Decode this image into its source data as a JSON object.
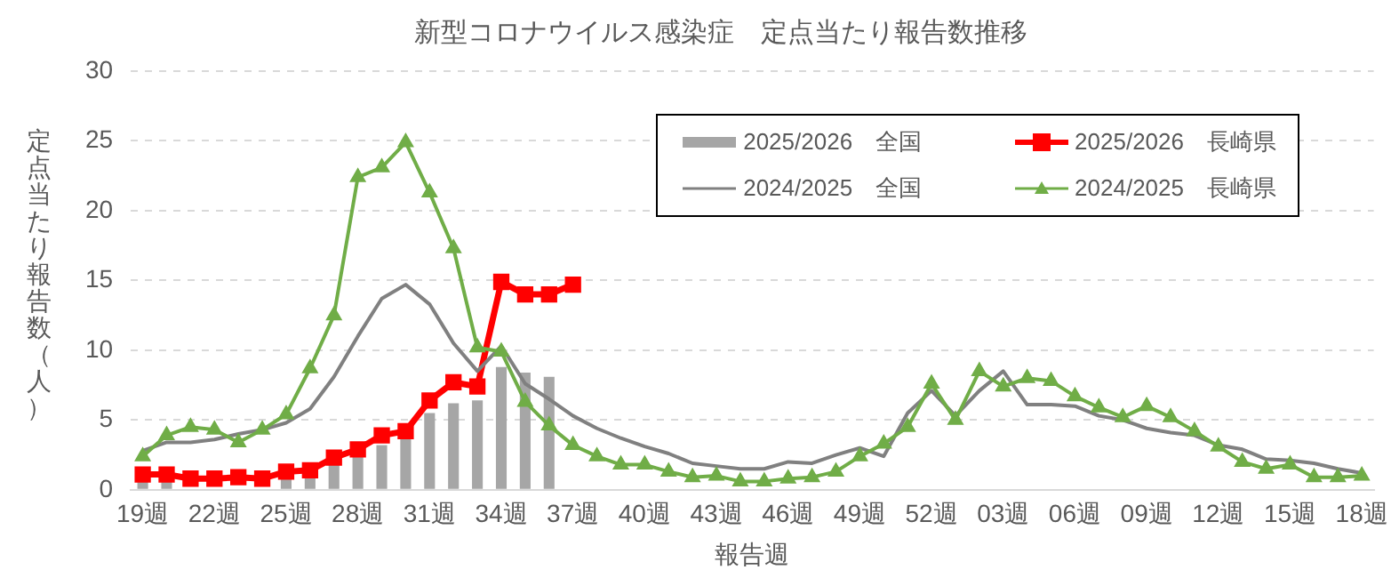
{
  "chart_data": {
    "type": "line",
    "title": "新型コロナウイルス感染症　定点当たり報告数推移",
    "xlabel": "報告週",
    "ylabel": "定点当たり報告数（人）",
    "categories": [
      "19週",
      null,
      null,
      "22週",
      null,
      null,
      "25週",
      null,
      null,
      "28週",
      null,
      null,
      "31週",
      null,
      null,
      "34週",
      null,
      null,
      "37週",
      null,
      null,
      "40週",
      null,
      null,
      "43週",
      null,
      null,
      "46週",
      null,
      null,
      "49週",
      null,
      null,
      "52週",
      null,
      null,
      "03週",
      null,
      null,
      "06週",
      null,
      null,
      "09週",
      null,
      null,
      "12週",
      null,
      null,
      "15週",
      null,
      null,
      "18週"
    ],
    "series": [
      {
        "name": "2025/2026　全国",
        "type": "bar",
        "color": "#a6a6a6",
        "values": [
          0.6,
          0.6,
          null,
          null,
          null,
          null,
          0.9,
          1.1,
          1.9,
          2.5,
          3.2,
          3.7,
          5.5,
          6.2,
          6.4,
          8.8,
          8.4,
          8.1,
          null,
          null,
          null,
          null,
          null,
          null,
          null,
          null,
          null,
          null,
          null,
          null,
          null,
          null,
          null,
          null,
          null,
          null,
          null,
          null,
          null,
          null,
          null,
          null,
          null,
          null,
          null,
          null,
          null,
          null,
          null,
          null,
          null,
          null
        ]
      },
      {
        "name": "2025/2026　長崎県",
        "color": "#ff0000",
        "marker": "square",
        "values": [
          1.1,
          1.1,
          0.8,
          0.8,
          0.9,
          0.8,
          1.3,
          1.4,
          2.3,
          2.9,
          3.9,
          4.2,
          6.4,
          7.7,
          7.4,
          14.9,
          14.0,
          14.0,
          14.7,
          null,
          null,
          null,
          null,
          null,
          null,
          null,
          null,
          null,
          null,
          null,
          null,
          null,
          null,
          null,
          null,
          null,
          null,
          null,
          null,
          null,
          null,
          null,
          null,
          null,
          null,
          null,
          null,
          null,
          null,
          null,
          null,
          null
        ]
      },
      {
        "name": "2024/2025　全国",
        "color": "#808080",
        "marker": "none",
        "values": [
          2.8,
          3.4,
          3.4,
          3.6,
          4.0,
          4.3,
          4.8,
          5.8,
          8.1,
          11.0,
          13.7,
          14.7,
          13.3,
          10.5,
          8.5,
          10.3,
          7.6,
          6.5,
          5.3,
          4.4,
          3.7,
          3.1,
          2.6,
          1.9,
          1.7,
          1.5,
          1.5,
          2.0,
          1.9,
          2.5,
          3.0,
          2.4,
          5.5,
          7.1,
          5.3,
          7.1,
          8.5,
          6.1,
          6.1,
          6.0,
          5.3,
          5.0,
          4.4,
          4.1,
          3.9,
          3.2,
          2.9,
          2.2,
          2.1,
          1.9,
          1.5,
          1.2
        ]
      },
      {
        "name": "2024/2025　長崎県",
        "color": "#70ad47",
        "marker": "triangle",
        "values": [
          2.4,
          3.9,
          4.5,
          4.3,
          3.4,
          4.3,
          5.4,
          8.7,
          12.5,
          22.4,
          23.1,
          24.9,
          21.3,
          17.3,
          10.2,
          9.9,
          6.3,
          4.6,
          3.2,
          2.4,
          1.8,
          1.8,
          1.3,
          0.9,
          1.0,
          0.6,
          0.6,
          0.8,
          0.9,
          1.3,
          2.4,
          3.3,
          4.5,
          7.6,
          5.0,
          8.5,
          7.4,
          8.0,
          7.8,
          6.7,
          5.9,
          5.2,
          6.0,
          5.2,
          4.2,
          3.1,
          2.0,
          1.5,
          1.8,
          0.9,
          0.9,
          1.0
        ]
      }
    ],
    "ylim": [
      0,
      30
    ],
    "yticks": [
      0,
      5,
      10,
      15,
      20,
      25,
      30
    ],
    "grid": "y",
    "legend": "top right"
  }
}
